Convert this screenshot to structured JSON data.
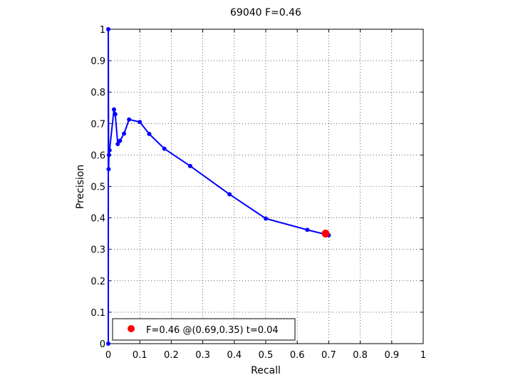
{
  "chart_data": {
    "type": "line",
    "title": "69040 F=0.46",
    "xlabel": "Recall",
    "ylabel": "Precision",
    "xlim": [
      0,
      1
    ],
    "ylim": [
      0,
      1
    ],
    "grid": true,
    "xticks": [
      "0",
      "0.1",
      "0.2",
      "0.3",
      "0.4",
      "0.5",
      "0.6",
      "0.7",
      "0.8",
      "0.9",
      "1"
    ],
    "yticks": [
      "0",
      "0.1",
      "0.2",
      "0.3",
      "0.4",
      "0.5",
      "0.6",
      "0.7",
      "0.8",
      "0.9",
      "1"
    ],
    "series": [
      {
        "color": "#0000ff",
        "points": [
          [
            0.0,
            1.0
          ],
          [
            0.001,
            0.555
          ],
          [
            0.002,
            0.6
          ],
          [
            0.004,
            0.615
          ],
          [
            0.018,
            0.745
          ],
          [
            0.022,
            0.73
          ],
          [
            0.03,
            0.635
          ],
          [
            0.037,
            0.645
          ],
          [
            0.05,
            0.668
          ],
          [
            0.066,
            0.713
          ],
          [
            0.1,
            0.705
          ],
          [
            0.13,
            0.667
          ],
          [
            0.178,
            0.62
          ],
          [
            0.26,
            0.565
          ],
          [
            0.385,
            0.475
          ],
          [
            0.5,
            0.398
          ],
          [
            0.632,
            0.362
          ],
          [
            0.7,
            0.345
          ]
        ],
        "vertical_segment": [
          [
            0.0,
            0.0
          ],
          [
            0.0,
            1.0
          ]
        ]
      }
    ],
    "highlight_point": {
      "x": 0.69,
      "y": 0.35,
      "color": "#ff0000"
    },
    "legend": {
      "position": "bottom-left",
      "label": "F=0.46 @(0.69,0.35) t=0.04"
    }
  }
}
